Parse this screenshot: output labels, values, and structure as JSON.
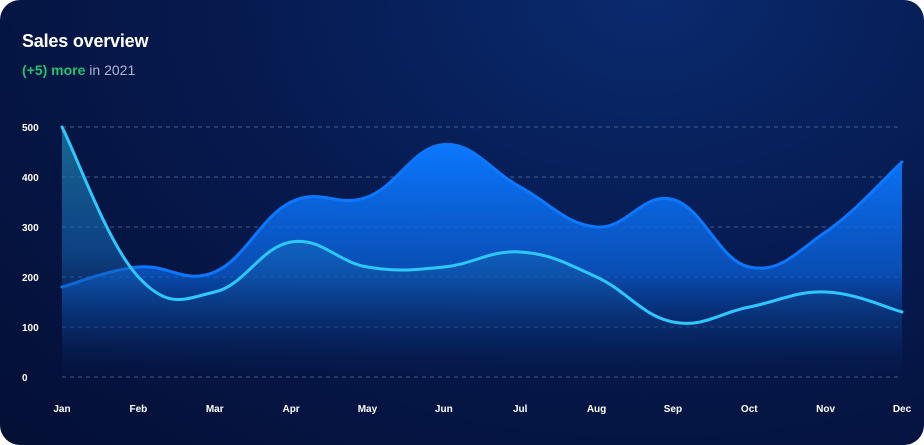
{
  "card": {
    "title": "Sales overview",
    "subtitle_highlight": "(+5) more",
    "subtitle_rest": " in 2021"
  },
  "colors": {
    "series_a": "#0b78ff",
    "series_b": "#2dc8ff",
    "grid": "#5a6e9e",
    "highlight": "#22c26b"
  },
  "chart_data": {
    "type": "area",
    "categories": [
      "Jan",
      "Feb",
      "Mar",
      "Apr",
      "May",
      "Jun",
      "Jul",
      "Aug",
      "Sep",
      "Oct",
      "Nov",
      "Dec"
    ],
    "yticks": [
      "500",
      "400",
      "300",
      "200",
      "100",
      "0"
    ],
    "ylim": [
      0,
      500
    ],
    "grid": true,
    "series": [
      {
        "values": [
          180,
          220,
          210,
          350,
          360,
          465,
          380,
          300,
          355,
          220,
          290,
          430
        ]
      },
      {
        "values": [
          500,
          200,
          170,
          270,
          220,
          220,
          250,
          200,
          110,
          140,
          170,
          130
        ]
      }
    ]
  }
}
